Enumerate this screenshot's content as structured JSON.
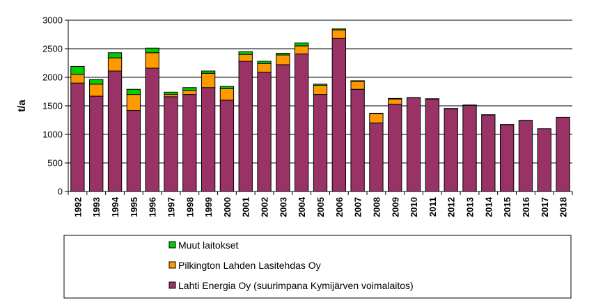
{
  "chart_data": {
    "type": "bar",
    "stacked": true,
    "title": "",
    "xlabel": "",
    "ylabel": "t/a",
    "ylim": [
      0,
      3000
    ],
    "yticks": [
      0,
      500,
      1000,
      1500,
      2000,
      2500,
      3000
    ],
    "grid": true,
    "legend_position": "bottom",
    "categories": [
      "1992",
      "1993",
      "1994",
      "1995",
      "1996",
      "1997",
      "1998",
      "1999",
      "2000",
      "2001",
      "2002",
      "2003",
      "2004",
      "2005",
      "2006",
      "2007",
      "2008",
      "2009",
      "2010",
      "2011",
      "2012",
      "2013",
      "2014",
      "2015",
      "2016",
      "2017",
      "2018"
    ],
    "series": [
      {
        "name": "Lahti Energia Oy (suurimpana Kymijärven voimalaitos)",
        "color": "#993366",
        "values": [
          1900,
          1670,
          2110,
          1420,
          2160,
          1660,
          1700,
          1820,
          1600,
          2280,
          2090,
          2220,
          2410,
          1700,
          2680,
          1790,
          1200,
          1530,
          1640,
          1620,
          1450,
          1510,
          1340,
          1170,
          1240,
          1100,
          1300
        ]
      },
      {
        "name": "Pilkington Lahden Lasitehdas Oy",
        "color": "#FF9900",
        "values": [
          150,
          210,
          230,
          280,
          270,
          40,
          70,
          250,
          200,
          120,
          150,
          170,
          140,
          160,
          150,
          140,
          160,
          90,
          0,
          0,
          0,
          0,
          0,
          0,
          0,
          0,
          0
        ]
      },
      {
        "name": "Muut laitokset",
        "color": "#00CC00",
        "values": [
          140,
          80,
          90,
          90,
          80,
          40,
          50,
          40,
          40,
          50,
          40,
          30,
          50,
          20,
          20,
          10,
          10,
          10,
          5,
          5,
          5,
          5,
          5,
          5,
          5,
          0,
          0
        ]
      }
    ]
  }
}
